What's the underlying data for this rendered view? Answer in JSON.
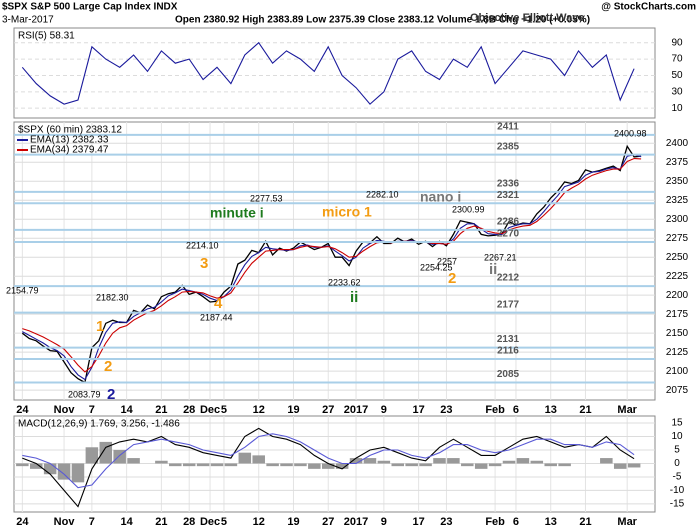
{
  "header": {
    "title": "$SPX S&P 500 Large Cap Index INDX",
    "credit": "@ StockCharts.com",
    "date": "3-Mar-2017",
    "quote": "Open 2380.92 High 2383.89 Low 2375.39 Close 2383.12 Volume 1.8B Chg +1.20 (+0.05%)",
    "watermark": "Objective Elliott Wave"
  },
  "chart_data": [
    {
      "type": "line",
      "xlim": [
        -0.6,
        45.5
      ],
      "ylim": [
        -2,
        108
      ],
      "yticks": [
        10,
        30,
        50,
        70,
        90
      ],
      "grid": true,
      "series": [
        {
          "name": "RSI(5) 58.31",
          "color": "#1a1a9c",
          "values": [
            60,
            40,
            25,
            15,
            20,
            85,
            70,
            60,
            75,
            55,
            80,
            65,
            70,
            45,
            60,
            40,
            75,
            90,
            65,
            80,
            70,
            55,
            85,
            50,
            35,
            15,
            30,
            70,
            80,
            55,
            45,
            70,
            60,
            85,
            40,
            60,
            80,
            75,
            70,
            50,
            80,
            60,
            75,
            20,
            58.31
          ]
        }
      ]
    },
    {
      "type": "line",
      "xlim": [
        -1.2,
        91
      ],
      "ylim": [
        2062,
        2428
      ],
      "yticks": [
        2075,
        2100,
        2125,
        2150,
        2175,
        2200,
        2225,
        2250,
        2275,
        2300,
        2325,
        2350,
        2375,
        2400
      ],
      "grid": true,
      "xticks": [
        {
          "value": 0,
          "label": "24"
        },
        {
          "value": 6,
          "label": "Nov"
        },
        {
          "value": 10,
          "label": "7"
        },
        {
          "value": 15,
          "label": "14"
        },
        {
          "value": 20,
          "label": "21"
        },
        {
          "value": 24,
          "label": "28"
        },
        {
          "value": 27,
          "label": "Dec"
        },
        {
          "value": 29,
          "label": "5"
        },
        {
          "value": 34,
          "label": "12"
        },
        {
          "value": 39,
          "label": "19"
        },
        {
          "value": 44,
          "label": "27"
        },
        {
          "value": 48,
          "label": "2017"
        },
        {
          "value": 52,
          "label": "9"
        },
        {
          "value": 57,
          "label": "17"
        },
        {
          "value": 61,
          "label": "23"
        },
        {
          "value": 68,
          "label": "Feb"
        },
        {
          "value": 71,
          "label": "6"
        },
        {
          "value": 76,
          "label": "13"
        },
        {
          "value": 81,
          "label": "21"
        },
        {
          "value": 87,
          "label": "Mar"
        }
      ],
      "levels": [
        2411,
        2385,
        2336,
        2321,
        2286,
        2270,
        2212,
        2177,
        2131,
        2116,
        2085
      ],
      "level_color": "#a9cfe8",
      "series": [
        {
          "name": "$SPX (60 min) 2383.12",
          "color": "#000000",
          "values": [
            2150,
            2143,
            2140,
            2133,
            2127,
            2126,
            2112,
            2098,
            2090,
            2085,
            2131,
            2140,
            2163,
            2167,
            2164,
            2164,
            2180,
            2177,
            2187,
            2182,
            2198,
            2202,
            2204,
            2213,
            2201,
            2204,
            2198,
            2191,
            2192,
            2204,
            2212,
            2241,
            2246,
            2259,
            2256,
            2271,
            2253,
            2262,
            2258,
            2262,
            2270,
            2265,
            2260,
            2263,
            2268,
            2250,
            2250,
            2239,
            2258,
            2270,
            2269,
            2277,
            2268,
            2268,
            2275,
            2270,
            2274,
            2267,
            2271,
            2264,
            2271,
            2265,
            2280,
            2298,
            2296,
            2294,
            2280,
            2278,
            2279,
            2281,
            2297,
            2292,
            2295,
            2294,
            2307,
            2316,
            2328,
            2337,
            2349,
            2347,
            2351,
            2365,
            2362,
            2364,
            2367,
            2370,
            2364,
            2396,
            2382,
            2383.12
          ]
        },
        {
          "name": "EMA(13) 2382.33",
          "color": "#1a1a9c",
          "values": [
            2152,
            2147,
            2142,
            2137,
            2131,
            2127,
            2120,
            2106,
            2095,
            2089,
            2105,
            2131,
            2151,
            2163,
            2165,
            2164,
            2172,
            2177,
            2182,
            2184,
            2191,
            2199,
            2203,
            2208,
            2206,
            2204,
            2201,
            2196,
            2193,
            2198,
            2207,
            2225,
            2240,
            2251,
            2256,
            2263,
            2261,
            2260,
            2259,
            2260,
            2265,
            2266,
            2263,
            2263,
            2265,
            2258,
            2252,
            2245,
            2250,
            2262,
            2268,
            2272,
            2271,
            2269,
            2271,
            2271,
            2272,
            2270,
            2270,
            2267,
            2268,
            2267,
            2274,
            2288,
            2294,
            2294,
            2287,
            2281,
            2280,
            2280,
            2289,
            2292,
            2294,
            2294,
            2300,
            2310,
            2321,
            2331,
            2343,
            2346,
            2349,
            2358,
            2362,
            2363,
            2366,
            2368,
            2366,
            2383,
            2385,
            2382.33
          ]
        },
        {
          "name": "EMA(34) 2379.47",
          "color": "#cc0000",
          "values": [
            2156,
            2153,
            2149,
            2145,
            2140,
            2135,
            2129,
            2119,
            2108,
            2099,
            2106,
            2120,
            2137,
            2150,
            2157,
            2160,
            2167,
            2172,
            2177,
            2180,
            2186,
            2193,
            2198,
            2204,
            2205,
            2204,
            2203,
            2199,
            2196,
            2198,
            2203,
            2216,
            2230,
            2242,
            2250,
            2258,
            2259,
            2260,
            2260,
            2260,
            2263,
            2265,
            2264,
            2263,
            2264,
            2261,
            2256,
            2250,
            2251,
            2258,
            2264,
            2269,
            2270,
            2269,
            2270,
            2271,
            2271,
            2270,
            2270,
            2268,
            2268,
            2267,
            2271,
            2281,
            2288,
            2291,
            2288,
            2284,
            2282,
            2281,
            2286,
            2289,
            2291,
            2292,
            2297,
            2305,
            2314,
            2324,
            2335,
            2341,
            2346,
            2353,
            2358,
            2361,
            2364,
            2366,
            2366,
            2376,
            2380,
            2379.47
          ]
        }
      ],
      "annotations": [
        {
          "text": "2154.79",
          "color": "#000000"
        },
        {
          "text": "2083.79",
          "color": "#000000"
        },
        {
          "text": "2182.30",
          "color": "#000000"
        },
        {
          "text": "2214.10",
          "color": "#000000"
        },
        {
          "text": "2187.44",
          "color": "#000000"
        },
        {
          "text": "2277.53",
          "color": "#000000"
        },
        {
          "text": "2233.62",
          "color": "#000000"
        },
        {
          "text": "2282.10",
          "color": "#000000"
        },
        {
          "text": "2254.25",
          "color": "#000000"
        },
        {
          "text": "2300.99",
          "color": "#000000"
        },
        {
          "text": "2267.21",
          "color": "#000000"
        },
        {
          "text": "2257",
          "color": "#000000"
        },
        {
          "text": "2400.98",
          "color": "#000000"
        },
        {
          "text": "1",
          "color": "#f39c12"
        },
        {
          "text": "2",
          "color": "#f39c12"
        },
        {
          "text": "2",
          "color": "#1a1a9c"
        },
        {
          "text": "3",
          "color": "#f39c12"
        },
        {
          "text": "4",
          "color": "#f39c12"
        },
        {
          "text": "minute i",
          "color": "#1e7b1e"
        },
        {
          "text": "micro 1",
          "color": "#f39c12"
        },
        {
          "text": "nano i",
          "color": "#777777"
        },
        {
          "text": "ii",
          "color": "#1e7b1e"
        },
        {
          "text": "2",
          "color": "#f39c12"
        },
        {
          "text": "ii",
          "color": "#777777"
        }
      ]
    },
    {
      "type": "line",
      "title": "MACD(12,26,9) 1.769, 3.256, -1.486",
      "xlim": [
        -0.6,
        45.5
      ],
      "ylim": [
        -18,
        17.6
      ],
      "yticks": [
        -15,
        -10,
        -5,
        0,
        5,
        10,
        15
      ],
      "grid": true,
      "xticks": [
        {
          "value": 0,
          "label": "24"
        },
        {
          "value": 3,
          "label": "Nov"
        },
        {
          "value": 5,
          "label": "7"
        },
        {
          "value": 7.5,
          "label": "14"
        },
        {
          "value": 10,
          "label": "21"
        },
        {
          "value": 12,
          "label": "28"
        },
        {
          "value": 13.5,
          "label": "Dec"
        },
        {
          "value": 14.5,
          "label": "5"
        },
        {
          "value": 17,
          "label": "12"
        },
        {
          "value": 19.5,
          "label": "19"
        },
        {
          "value": 22,
          "label": "27"
        },
        {
          "value": 24,
          "label": "2017"
        },
        {
          "value": 26,
          "label": "9"
        },
        {
          "value": 28.5,
          "label": "17"
        },
        {
          "value": 30.5,
          "label": "23"
        },
        {
          "value": 34,
          "label": "Feb"
        },
        {
          "value": 35.5,
          "label": "6"
        },
        {
          "value": 38,
          "label": "13"
        },
        {
          "value": 40.5,
          "label": "21"
        },
        {
          "value": 43.5,
          "label": "Mar"
        }
      ],
      "series": [
        {
          "type": "bar",
          "color": "#999999",
          "values": [
            -1,
            -2,
            -4,
            -6,
            -7,
            6,
            8,
            5,
            2,
            0,
            1,
            -1,
            -1,
            -1,
            -1,
            -1,
            4,
            3,
            -1,
            -1,
            -1,
            -2,
            -2,
            -2,
            2,
            2,
            1,
            -1,
            -1,
            -1,
            2,
            2,
            -1,
            -2,
            -1,
            1,
            2,
            1,
            -1,
            -1,
            0,
            0,
            2,
            -2,
            -1.486
          ]
        },
        {
          "type": "line",
          "color": "#000000",
          "values": [
            2,
            0,
            -4,
            -10,
            -16,
            -2,
            6,
            8,
            9,
            8,
            10,
            7,
            6,
            4,
            3,
            2,
            10,
            13,
            10,
            9,
            7,
            3,
            0,
            -2,
            2,
            5,
            6,
            4,
            2,
            1,
            6,
            9,
            6,
            3,
            3,
            6,
            9,
            10,
            8,
            6,
            7,
            6,
            10,
            5,
            1.769
          ]
        },
        {
          "type": "line",
          "color": "#5a5ad6",
          "values": [
            3,
            2,
            0,
            -4,
            -9,
            -8,
            -2,
            3,
            7,
            8,
            9,
            8,
            7,
            5,
            4,
            3,
            6,
            10,
            11,
            10,
            8,
            5,
            2,
            0,
            0,
            3,
            5,
            5,
            3,
            2,
            4,
            7,
            7,
            5,
            4,
            5,
            7,
            9,
            9,
            7,
            7,
            6,
            8,
            7,
            3.256
          ]
        }
      ]
    }
  ]
}
